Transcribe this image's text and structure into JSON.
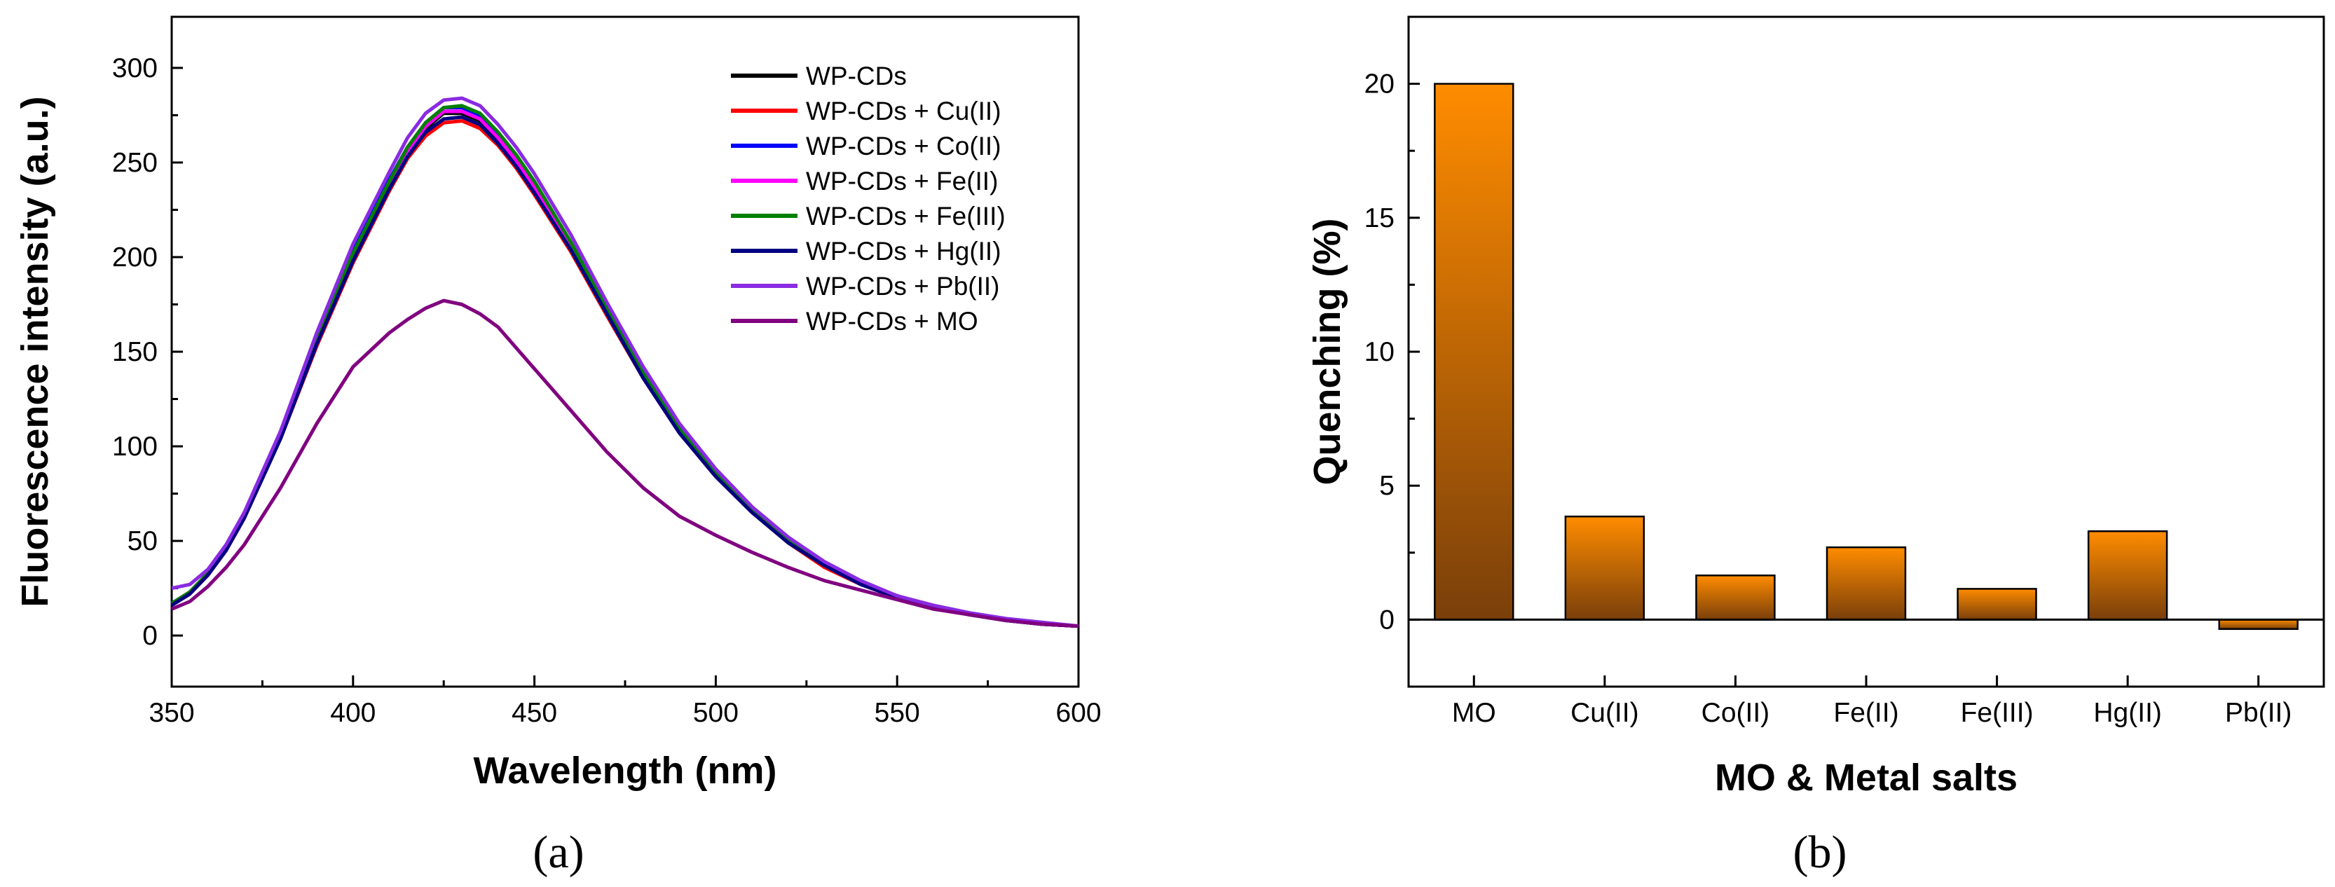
{
  "chart_data": [
    {
      "type": "line",
      "panel_label": "(a)",
      "title": "",
      "xlabel": "Wavelength (nm)",
      "ylabel": "Fluorescence intensity (a.u.)",
      "xlim": [
        350,
        600
      ],
      "ylim": [
        -27,
        327
      ],
      "xticks": [
        350,
        400,
        450,
        500,
        550,
        600
      ],
      "yticks": [
        0,
        50,
        100,
        150,
        200,
        250,
        300
      ],
      "grid": false,
      "legend_position": "top-right",
      "x": [
        350,
        355,
        360,
        365,
        370,
        380,
        390,
        400,
        410,
        415,
        420,
        425,
        430,
        435,
        440,
        445,
        450,
        460,
        470,
        480,
        490,
        500,
        510,
        520,
        530,
        540,
        550,
        560,
        570,
        580,
        590,
        600
      ],
      "series": [
        {
          "name": "WP-CDs",
          "color": "#000000",
          "values": [
            16,
            22,
            32,
            45,
            62,
            105,
            155,
            200,
            238,
            255,
            268,
            276,
            276,
            272,
            262,
            250,
            236,
            205,
            170,
            137,
            108,
            85,
            66,
            50,
            37,
            27,
            20,
            15,
            11,
            8,
            6,
            5
          ]
        },
        {
          "name": "WP-CDs + Cu(II)",
          "color": "#ff0000",
          "values": [
            16,
            22,
            32,
            45,
            62,
            104,
            153,
            197,
            235,
            252,
            264,
            271,
            272,
            268,
            259,
            247,
            233,
            203,
            169,
            136,
            107,
            84,
            65,
            49,
            36,
            27,
            20,
            15,
            11,
            8,
            6,
            5
          ]
        },
        {
          "name": "WP-CDs + Co(II)",
          "color": "#0000ff",
          "values": [
            17,
            23,
            33,
            46,
            63,
            106,
            157,
            203,
            241,
            258,
            271,
            279,
            279,
            275,
            265,
            253,
            239,
            207,
            172,
            139,
            110,
            86,
            67,
            51,
            38,
            28,
            21,
            15,
            11,
            8,
            6,
            5
          ]
        },
        {
          "name": "WP-CDs + Fe(II)",
          "color": "#ff00ff",
          "values": [
            16,
            22,
            32,
            45,
            62,
            105,
            155,
            200,
            238,
            256,
            269,
            277,
            277,
            273,
            263,
            251,
            237,
            206,
            171,
            138,
            109,
            86,
            66,
            50,
            37,
            27,
            20,
            15,
            11,
            8,
            6,
            5
          ]
        },
        {
          "name": "WP-CDs + Fe(III)",
          "color": "#008000",
          "values": [
            17,
            23,
            33,
            46,
            63,
            106,
            157,
            202,
            240,
            258,
            271,
            279,
            280,
            276,
            266,
            254,
            240,
            208,
            173,
            139,
            110,
            86,
            67,
            51,
            38,
            28,
            21,
            15,
            11,
            8,
            6,
            5
          ]
        },
        {
          "name": "WP-CDs + Hg(II)",
          "color": "#000080",
          "values": [
            16,
            22,
            32,
            45,
            62,
            104,
            154,
            198,
            236,
            253,
            266,
            273,
            274,
            270,
            260,
            248,
            234,
            204,
            170,
            136,
            107,
            84,
            65,
            49,
            37,
            27,
            20,
            15,
            11,
            8,
            6,
            5
          ]
        },
        {
          "name": "WP-CDs + Pb(II)",
          "color": "#8a2be2",
          "values": [
            25,
            27,
            35,
            48,
            65,
            108,
            160,
            207,
            245,
            263,
            276,
            283,
            284,
            280,
            270,
            258,
            244,
            212,
            176,
            142,
            112,
            88,
            68,
            52,
            39,
            29,
            21,
            16,
            12,
            9,
            7,
            5
          ]
        },
        {
          "name": "WP-CDs + MO",
          "color": "#800080",
          "values": [
            14,
            18,
            26,
            36,
            48,
            78,
            112,
            142,
            160,
            167,
            173,
            177,
            175,
            170,
            163,
            152,
            141,
            119,
            97,
            78,
            63,
            53,
            44,
            36,
            29,
            24,
            19,
            14,
            11,
            8,
            6,
            5
          ]
        }
      ]
    },
    {
      "type": "bar",
      "panel_label": "(b)",
      "title": "",
      "xlabel": "MO & Metal salts",
      "ylabel": "Quenching (%)",
      "ylim": [
        -2.5,
        22.5
      ],
      "yticks": [
        0,
        5,
        10,
        15,
        20
      ],
      "grid": false,
      "categories": [
        "MO",
        "Cu(II)",
        "Co(II)",
        "Fe(II)",
        "Fe(III)",
        "Hg(II)",
        "Pb(II)"
      ],
      "values": [
        20.0,
        3.85,
        1.65,
        2.7,
        1.15,
        3.3,
        -0.35
      ],
      "bar_color_top": "#ff8c00",
      "bar_color_bottom": "#7a3f0a"
    }
  ]
}
